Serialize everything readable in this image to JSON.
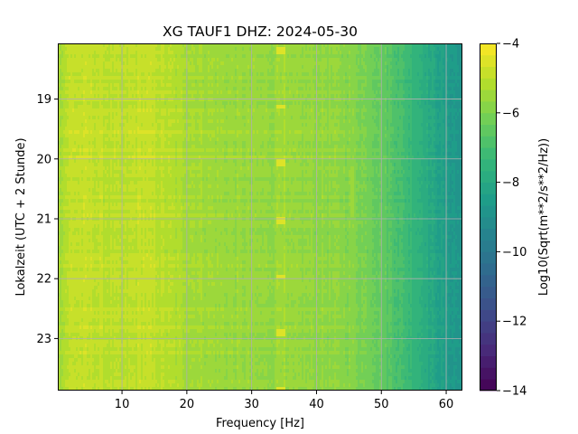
{
  "chart_data": {
    "type": "heatmap",
    "title": "XG TAUF1  DHZ: 2024-05-30",
    "xlabel": "Frequency [Hz]",
    "ylabel": "Lokalzeit (UTC + 2 Stunde)",
    "xlim": [
      0.1,
      62.5
    ],
    "ylim": [
      18.07,
      23.87
    ],
    "y_inverted": true,
    "x_ticks": [
      10,
      20,
      30,
      40,
      50,
      60
    ],
    "y_ticks": [
      19,
      20,
      21,
      22,
      23
    ],
    "grid": true,
    "colormap": "viridis",
    "colorbar": {
      "label": "Log10(Sqrt(m**2/s**2/Hz))",
      "range": [
        -14,
        -4
      ],
      "ticks": [
        -4,
        -6,
        -8,
        -10,
        -12,
        -14
      ],
      "levels": 30
    },
    "spectral_profile": {
      "frequency_hz": [
        0.5,
        2,
        5,
        10,
        13,
        17,
        20,
        25,
        30,
        35,
        40,
        45,
        48,
        50,
        53,
        56,
        58,
        60,
        62.5
      ],
      "log10_amplitude": [
        -5.3,
        -4.9,
        -4.9,
        -5.1,
        -4.85,
        -5.1,
        -5.3,
        -5.5,
        -5.6,
        -5.65,
        -5.65,
        -5.8,
        -6.1,
        -6.4,
        -7.0,
        -7.6,
        -8.1,
        -8.5,
        -8.8
      ]
    },
    "features": [
      {
        "kind": "spectral_line",
        "frequency_hz": 34.5,
        "peak_value": -4.4,
        "recurring_hours": [
          18.2,
          19.12,
          20.07,
          21.02,
          21.97,
          22.9,
          23.85
        ]
      },
      {
        "kind": "spectral_line",
        "frequency_hz": 45.5,
        "peak_value": -5.5,
        "hour_range": [
          20.1,
          21.0
        ]
      }
    ]
  }
}
